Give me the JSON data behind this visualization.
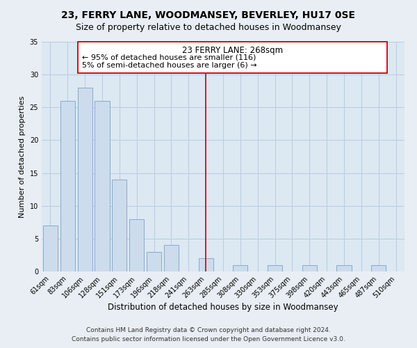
{
  "title": "23, FERRY LANE, WOODMANSEY, BEVERLEY, HU17 0SE",
  "subtitle": "Size of property relative to detached houses in Woodmansey",
  "xlabel": "Distribution of detached houses by size in Woodmansey",
  "ylabel": "Number of detached properties",
  "bar_labels": [
    "61sqm",
    "83sqm",
    "106sqm",
    "128sqm",
    "151sqm",
    "173sqm",
    "196sqm",
    "218sqm",
    "241sqm",
    "263sqm",
    "285sqm",
    "308sqm",
    "330sqm",
    "353sqm",
    "375sqm",
    "398sqm",
    "420sqm",
    "443sqm",
    "465sqm",
    "487sqm",
    "510sqm"
  ],
  "bar_values": [
    7,
    26,
    28,
    26,
    14,
    8,
    3,
    4,
    0,
    2,
    0,
    1,
    0,
    1,
    0,
    1,
    0,
    1,
    0,
    1,
    0
  ],
  "bar_color": "#ccdcec",
  "bar_edge_color": "#88aacc",
  "vline_color": "#cc0000",
  "ylim": [
    0,
    35
  ],
  "yticks": [
    0,
    5,
    10,
    15,
    20,
    25,
    30,
    35
  ],
  "annotation_title": "23 FERRY LANE: 268sqm",
  "annotation_line1": "← 95% of detached houses are smaller (116)",
  "annotation_line2": "5% of semi-detached houses are larger (6) →",
  "footnote1": "Contains HM Land Registry data © Crown copyright and database right 2024.",
  "footnote2": "Contains public sector information licensed under the Open Government Licence v3.0.",
  "bg_color": "#e8eef4",
  "plot_bg_color": "#dce8f2",
  "grid_color": "#b8cce0",
  "title_fontsize": 10,
  "subtitle_fontsize": 9,
  "xlabel_fontsize": 8.5,
  "ylabel_fontsize": 8,
  "tick_fontsize": 7,
  "annotation_title_fontsize": 8.5,
  "annotation_text_fontsize": 8,
  "footnote_fontsize": 6.5,
  "vline_index": 9
}
